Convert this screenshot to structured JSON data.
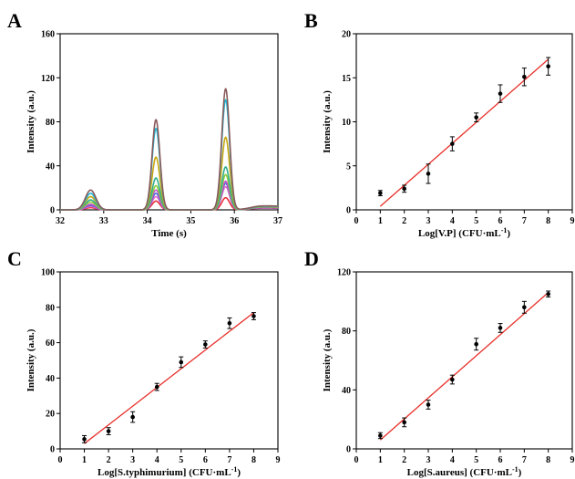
{
  "chart_data": [
    {
      "panel": "A",
      "type": "line",
      "xlabel": "Time (s)",
      "ylabel": "Intensity (a.u.)",
      "xlim": [
        32,
        37
      ],
      "ylim": [
        0,
        160
      ],
      "xticks": [
        32,
        33,
        34,
        35,
        36,
        37
      ],
      "yticks": [
        0,
        40,
        80,
        120,
        160
      ],
      "grid": false,
      "legend": "none",
      "peak_centers": [
        32.7,
        34.2,
        35.8
      ],
      "series": [
        {
          "color": "#e8303a",
          "peaks": [
            2,
            8,
            11
          ]
        },
        {
          "color": "#ee66cc",
          "peaks": [
            3,
            12,
            21
          ]
        },
        {
          "color": "#4a6fd8",
          "peaks": [
            4,
            15,
            24
          ]
        },
        {
          "color": "#c64fc8",
          "peaks": [
            5,
            18,
            26
          ]
        },
        {
          "color": "#8fce3a",
          "peaks": [
            7,
            22,
            32
          ]
        },
        {
          "color": "#2fae8c",
          "peaks": [
            9,
            29,
            39
          ]
        },
        {
          "color": "#c8a812",
          "peaks": [
            12,
            48,
            66
          ]
        },
        {
          "color": "#1fb6d8",
          "peaks": [
            15,
            74,
            100
          ]
        },
        {
          "color": "#8a5a5a",
          "peaks": [
            18,
            82,
            110
          ]
        }
      ]
    },
    {
      "panel": "B",
      "type": "scatter",
      "xlabel": "Log[V.P] (CFU·mL",
      "xlabel_sup": "-1",
      "xlabel_tail": ")",
      "ylabel": "Intensity (a.u.)",
      "xlim": [
        0,
        9
      ],
      "ylim": [
        0,
        20
      ],
      "xticks": [
        0,
        1,
        2,
        3,
        4,
        5,
        6,
        7,
        8,
        9
      ],
      "yticks": [
        0,
        5,
        10,
        15,
        20
      ],
      "x": [
        1,
        2,
        3,
        4,
        5,
        6,
        7,
        8
      ],
      "y": [
        1.9,
        2.4,
        4.1,
        7.5,
        10.5,
        13.2,
        15.1,
        16.3
      ],
      "err": [
        0.3,
        0.4,
        1.1,
        0.8,
        0.5,
        1.0,
        1.0,
        1.0
      ],
      "fit": {
        "x": [
          1,
          8
        ],
        "y": [
          0.4,
          17.1
        ],
        "color": "#e8302a"
      }
    },
    {
      "panel": "C",
      "type": "scatter",
      "xlabel": "Log[S.typhimurium] (CFU·mL",
      "xlabel_sup": "-1",
      "xlabel_tail": ")",
      "ylabel": "Intensity (a.u.)",
      "xlim": [
        0,
        9
      ],
      "ylim": [
        0,
        100
      ],
      "xticks": [
        0,
        1,
        2,
        3,
        4,
        5,
        6,
        7,
        8,
        9
      ],
      "yticks": [
        0,
        20,
        40,
        60,
        80,
        100
      ],
      "x": [
        1,
        2,
        3,
        4,
        5,
        6,
        7,
        8
      ],
      "y": [
        5.5,
        10,
        18,
        35,
        49,
        59,
        71,
        75
      ],
      "err": [
        2,
        2,
        3,
        2,
        3,
        2,
        3,
        2
      ],
      "fit": {
        "x": [
          1,
          8
        ],
        "y": [
          3,
          77
        ],
        "color": "#e8302a"
      }
    },
    {
      "panel": "D",
      "type": "scatter",
      "xlabel": "Log[S.aureus] (CFU·mL",
      "xlabel_sup": "-1",
      "xlabel_tail": ")",
      "ylabel": "Intensity (a.u.)",
      "xlim": [
        0,
        9
      ],
      "ylim": [
        0,
        120
      ],
      "xticks": [
        0,
        1,
        2,
        3,
        4,
        5,
        6,
        7,
        8,
        9
      ],
      "yticks": [
        0,
        40,
        80,
        120
      ],
      "x": [
        1,
        2,
        3,
        4,
        5,
        6,
        7,
        8
      ],
      "y": [
        9,
        18,
        30,
        47,
        71,
        82,
        96,
        105
      ],
      "err": [
        2,
        3,
        3,
        3,
        4,
        3,
        4,
        2
      ],
      "fit": {
        "x": [
          1,
          8
        ],
        "y": [
          6,
          106
        ],
        "color": "#e8302a"
      }
    }
  ]
}
